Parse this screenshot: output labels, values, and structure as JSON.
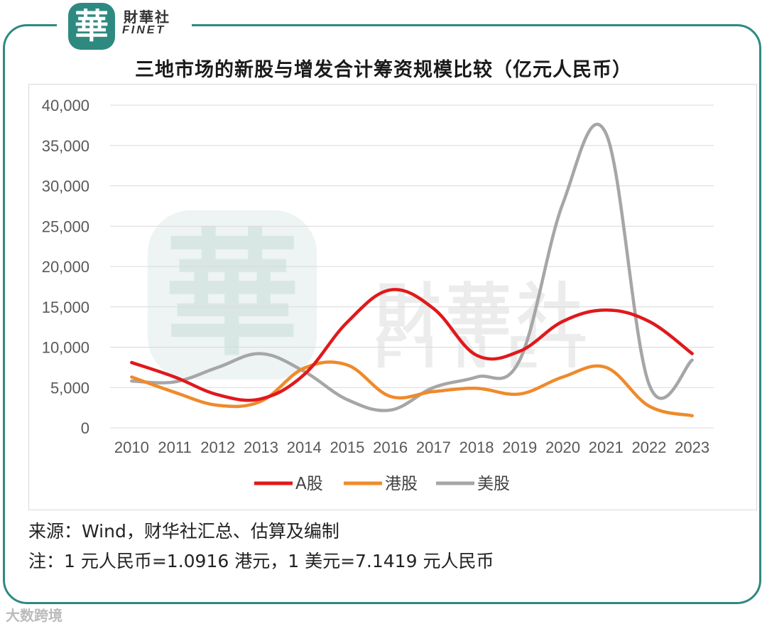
{
  "brand": {
    "logo_char": "華",
    "name_cn": "財華社",
    "name_en": "FINET"
  },
  "colors": {
    "frame": "#2e8a80",
    "a_share": "#e0191c",
    "hk_share": "#ef8a2b",
    "us_share": "#a6a6a6",
    "grid": "#d9d9d9"
  },
  "chart_data": {
    "type": "line",
    "title": "三地市场的新股与增发合计筹资规模比较（亿元人民币）",
    "categories": [
      "2010",
      "2011",
      "2012",
      "2013",
      "2014",
      "2015",
      "2016",
      "2017",
      "2018",
      "2019",
      "2020",
      "2021",
      "2022",
      "2023"
    ],
    "ylim": [
      0,
      40000
    ],
    "yticks": [
      "0",
      "5,000",
      "10,000",
      "15,000",
      "20,000",
      "25,000",
      "30,000",
      "35,000",
      "40,000"
    ],
    "ytick_values": [
      0,
      5000,
      10000,
      15000,
      20000,
      25000,
      30000,
      35000,
      40000
    ],
    "grid": true,
    "legend_position": "bottom",
    "series": [
      {
        "name": "A股",
        "color": "#e0191c",
        "values": [
          8100,
          6300,
          4100,
          3600,
          6600,
          13100,
          17100,
          14800,
          9000,
          9500,
          13200,
          14600,
          13200,
          9200
        ]
      },
      {
        "name": "港股",
        "color": "#ef8a2b",
        "values": [
          6300,
          4400,
          2800,
          3300,
          7400,
          7800,
          3900,
          4500,
          4900,
          4200,
          6300,
          7500,
          2700,
          1500
        ]
      },
      {
        "name": "美股",
        "color": "#a6a6a6",
        "values": [
          5800,
          5700,
          7500,
          9200,
          7000,
          3500,
          2200,
          5000,
          6300,
          8400,
          27800,
          36500,
          5400,
          8400
        ]
      }
    ]
  },
  "source_text": "来源：Wind，财华社汇总、估算及编制",
  "note_text": "注：1 元人民币=1.0916 港元，1 美元=7.1419 元人民币",
  "watermark": {
    "seal_char": "華",
    "cn": "財華社",
    "en": "FINET"
  },
  "footer_text": "大数跨境"
}
